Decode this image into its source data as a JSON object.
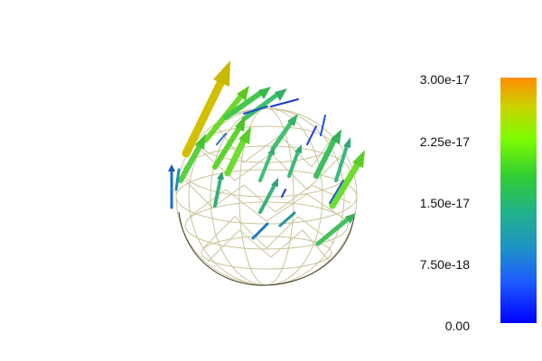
{
  "viewport": {
    "background": "#ffffff",
    "mesh_color": "#c9c49a",
    "mesh_dark_color": "#3a3a2a"
  },
  "colorbar": {
    "colormap": [
      "#0000ff",
      "#1e90ff",
      "#20b2aa",
      "#32cd32",
      "#7cfc00",
      "#c8d400",
      "#ff8c00"
    ],
    "ticks": [
      {
        "label": "3.00e-17",
        "value": 3e-17
      },
      {
        "label": "2.25e-17",
        "value": 2.25e-17
      },
      {
        "label": "1.50e-17",
        "value": 1.5e-17
      },
      {
        "label": "7.50e-18",
        "value": 7.5e-18
      },
      {
        "label": "0.00",
        "value": 0.0
      }
    ]
  }
}
